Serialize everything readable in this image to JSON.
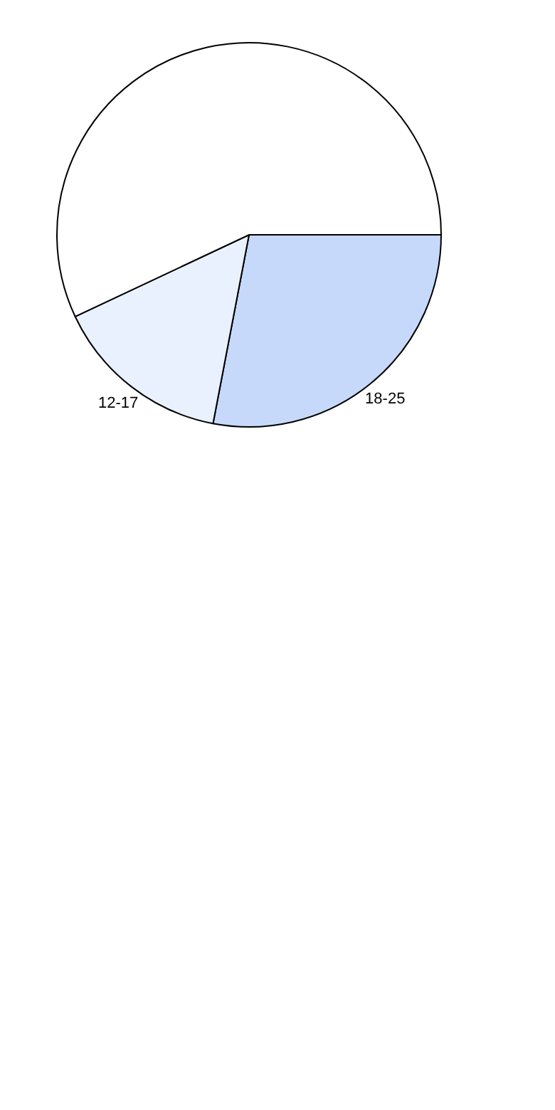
{
  "chart_data": {
    "type": "pie",
    "categories": [
      "18-25",
      "12-17",
      null
    ],
    "values": [
      28,
      15,
      57
    ],
    "colors": [
      "#c6d9fa",
      "#eaf1fe",
      "#ffffff"
    ],
    "legend": false
  }
}
